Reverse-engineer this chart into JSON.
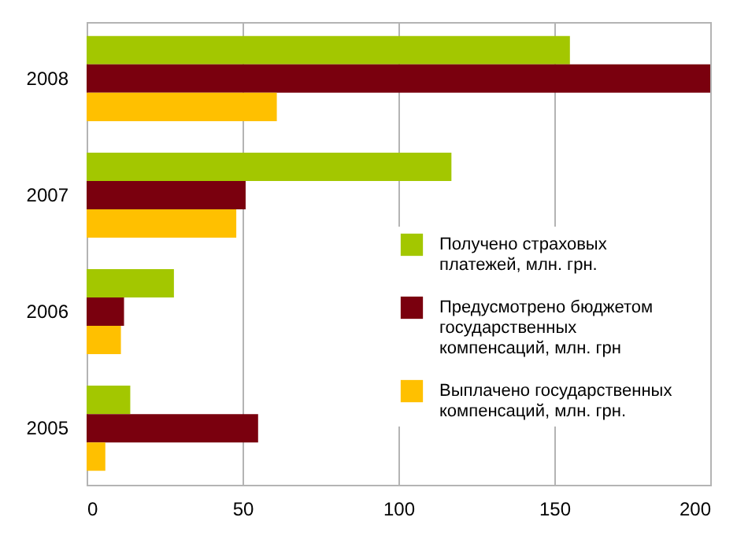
{
  "chart_data": {
    "type": "bar",
    "orientation": "horizontal",
    "categories": [
      "2008",
      "2007",
      "2006",
      "2005"
    ],
    "series": [
      {
        "name": "Получено страховых платежей, млн. грн.",
        "color": "#a3c700",
        "values": [
          155,
          117,
          28,
          14
        ]
      },
      {
        "name": "Предусмотрено бюджетом государственных компенсаций, млн. грн",
        "color": "#7a000e",
        "values": [
          200,
          51,
          12,
          55
        ]
      },
      {
        "name": "Выплачено государственных компенсаций, млн. грн.",
        "color": "#ffc000",
        "values": [
          61,
          48,
          11,
          6
        ]
      }
    ],
    "xlim": [
      0,
      200
    ],
    "xticks": [
      0,
      50,
      100,
      150,
      200
    ],
    "grid": "x",
    "legend": "right"
  }
}
